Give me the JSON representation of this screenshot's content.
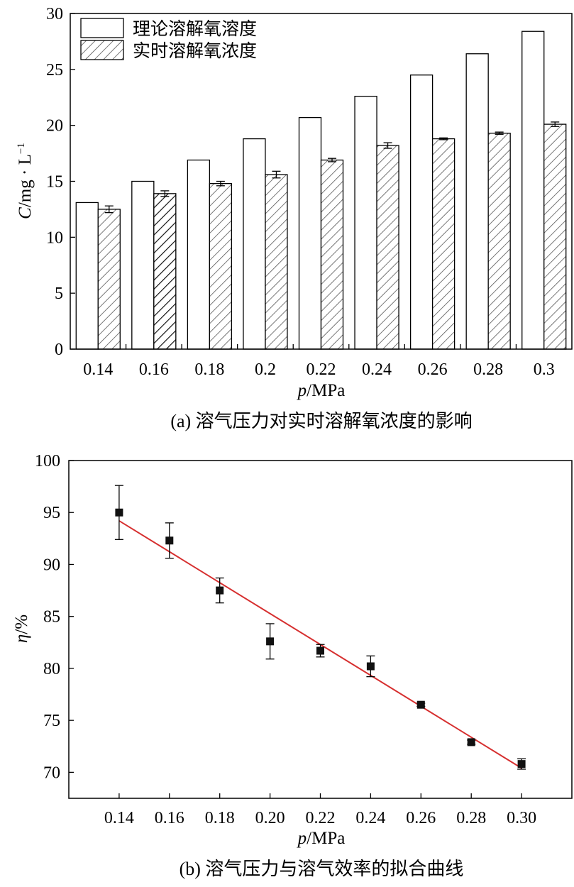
{
  "chart_data": [
    {
      "type": "bar",
      "caption": "(a) 溶气压力对实时溶解氧浓度的影响",
      "xlabel_italic": "p",
      "xlabel_rest": "/MPa",
      "ylabel_italic": "C",
      "ylabel_rest": "/mg · L",
      "ylabel_sup": "−1",
      "categories": [
        "0.14",
        "0.16",
        "0.18",
        "0.2",
        "0.22",
        "0.24",
        "0.26",
        "0.28",
        "0.3"
      ],
      "ylim": [
        0,
        30
      ],
      "yticks": [
        "0",
        "5",
        "10",
        "15",
        "20",
        "25",
        "30"
      ],
      "legend_position": "top-left",
      "series": [
        {
          "name": "理论溶解氧溶度",
          "fill": "none",
          "values": [
            13.1,
            15.0,
            16.9,
            18.8,
            20.7,
            22.6,
            24.5,
            26.4,
            28.4
          ]
        },
        {
          "name": "实时溶解氧浓度",
          "fill": "hatched",
          "values": [
            12.5,
            13.9,
            14.8,
            15.6,
            16.9,
            18.2,
            18.8,
            19.3,
            20.1
          ],
          "errors": [
            0.3,
            0.25,
            0.2,
            0.3,
            0.15,
            0.25,
            0.08,
            0.1,
            0.2
          ]
        }
      ]
    },
    {
      "type": "scatter",
      "caption": "(b) 溶气压力与溶气效率的拟合曲线",
      "xlabel_italic": "p",
      "xlabel_rest": "/MPa",
      "ylabel_italic": "η",
      "ylabel_rest": "/%",
      "xlim": [
        0.12,
        0.32
      ],
      "ylim": [
        67.5,
        100
      ],
      "xticks": [
        "0.14",
        "0.16",
        "0.18",
        "0.20",
        "0.22",
        "0.24",
        "0.26",
        "0.28",
        "0.30"
      ],
      "yticks": [
        "70",
        "75",
        "80",
        "85",
        "90",
        "95",
        "100"
      ],
      "series": [
        {
          "marker": "square",
          "x": [
            0.14,
            0.16,
            0.18,
            0.2,
            0.22,
            0.24,
            0.26,
            0.28,
            0.3
          ],
          "y": [
            95.0,
            92.3,
            87.5,
            82.6,
            81.7,
            80.2,
            76.5,
            72.9,
            70.8
          ],
          "errors": [
            2.6,
            1.7,
            1.2,
            1.7,
            0.6,
            1.0,
            0.15,
            0.2,
            0.5
          ]
        }
      ],
      "fit_line": {
        "color": "#d62f2f",
        "x": [
          0.14,
          0.3
        ],
        "y": [
          94.2,
          70.4
        ]
      }
    }
  ]
}
